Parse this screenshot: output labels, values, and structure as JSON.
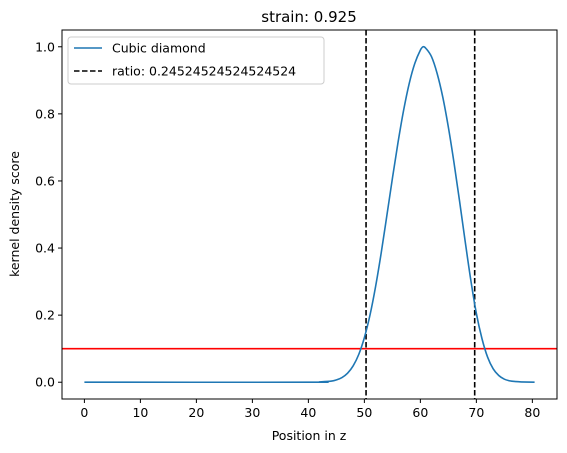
{
  "chart_data": {
    "type": "line",
    "title": "strain: 0.925",
    "xlabel": "Position in z",
    "ylabel": "kernel density score",
    "xlim": [
      -4,
      84.4
    ],
    "ylim": [
      -0.05,
      1.05
    ],
    "xticks": [
      0,
      10,
      20,
      30,
      40,
      50,
      60,
      70,
      80
    ],
    "yticks": [
      0.0,
      0.2,
      0.4,
      0.6,
      0.8,
      1.0
    ],
    "xtick_labels": [
      "0",
      "10",
      "20",
      "30",
      "40",
      "50",
      "60",
      "70",
      "80"
    ],
    "ytick_labels": [
      "0.0",
      "0.2",
      "0.4",
      "0.6",
      "0.8",
      "1.0"
    ],
    "grid": false,
    "legend_position": "upper left",
    "series": [
      {
        "name": "Cubic diamond",
        "color": "#1f77b4",
        "style": "solid",
        "x": [
          0,
          40,
          42,
          44,
          45,
          46,
          47,
          48,
          49,
          50,
          51,
          52,
          53,
          54,
          55,
          56,
          57,
          58,
          59,
          60,
          60.5,
          61,
          62,
          63,
          64,
          65,
          66,
          67,
          68,
          69,
          70,
          71,
          72,
          73,
          74,
          75,
          76,
          77,
          78,
          80.4
        ],
        "y": [
          0.0,
          0.0,
          0.001,
          0.003,
          0.007,
          0.014,
          0.027,
          0.049,
          0.083,
          0.133,
          0.2,
          0.285,
          0.385,
          0.495,
          0.607,
          0.714,
          0.81,
          0.89,
          0.95,
          0.99,
          1.0,
          0.995,
          0.97,
          0.92,
          0.85,
          0.76,
          0.655,
          0.54,
          0.42,
          0.305,
          0.205,
          0.13,
          0.075,
          0.04,
          0.02,
          0.009,
          0.004,
          0.002,
          0.001,
          0.0
        ]
      }
    ],
    "vlines": [
      {
        "name": "ratio: 0.24524524524524524",
        "x": 50.3,
        "color": "#000000",
        "style": "dashed"
      },
      {
        "x": 69.7,
        "color": "#000000",
        "style": "dashed"
      }
    ],
    "hlines": [
      {
        "y": 0.1,
        "color": "#ff0000",
        "style": "solid"
      }
    ],
    "legend": [
      {
        "label": "Cubic diamond",
        "color": "#1f77b4",
        "style": "solid"
      },
      {
        "label": "ratio: 0.24524524524524524",
        "color": "#000000",
        "style": "dashed"
      }
    ]
  }
}
